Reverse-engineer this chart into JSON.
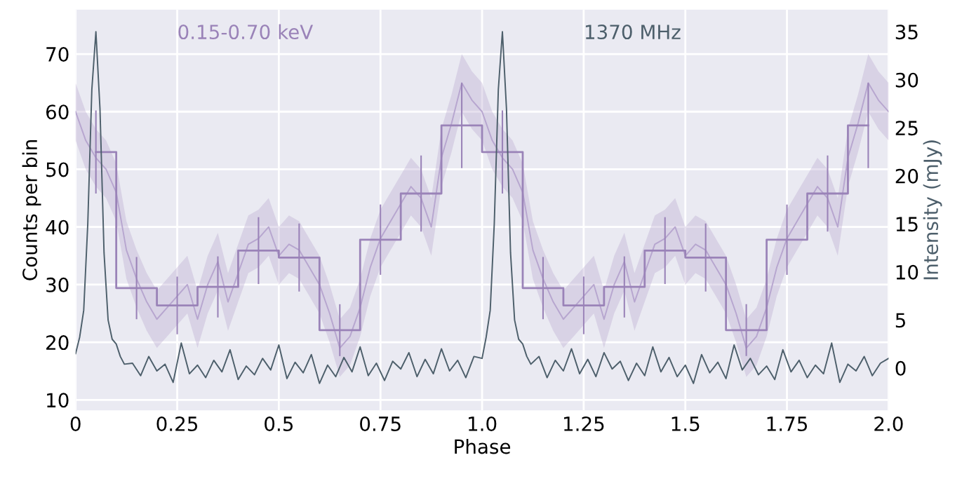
{
  "chart_data": {
    "type": "line",
    "xlabel": "Phase",
    "ylabel": "Counts per bin",
    "y2label": "Intensity (mJy)",
    "xlim": [
      0,
      2
    ],
    "xticks": [
      0,
      0.25,
      0.5,
      0.75,
      {
        "value": 1,
        "label": "1.0"
      },
      1.25,
      1.5,
      1.75,
      {
        "value": 2,
        "label": "2.0"
      }
    ],
    "ylim": [
      8.2,
      77.7
    ],
    "yticks": [
      10,
      20,
      30,
      40,
      50,
      60,
      70
    ],
    "y2lim": [
      -4.4,
      37.3
    ],
    "y2ticks": [
      0,
      5,
      10,
      15,
      20,
      25,
      30,
      35
    ],
    "grid": true,
    "series": [
      {
        "color": "#b7a6cf",
        "x": [
          0,
          0.025,
          0.05,
          0.075,
          0.1,
          0.125,
          0.15,
          0.175,
          0.2,
          0.225,
          0.25,
          0.275,
          0.3,
          0.325,
          0.35,
          0.375,
          0.4,
          0.425,
          0.45,
          0.475,
          0.5,
          0.525,
          0.55,
          0.575,
          0.6,
          0.625,
          0.65,
          0.675,
          0.7,
          0.725,
          0.75,
          0.775,
          0.8,
          0.825,
          0.85,
          0.875,
          0.9,
          0.925,
          0.95,
          0.975,
          1.0,
          1.025,
          1.05,
          1.075,
          1.1,
          1.125,
          1.15,
          1.175,
          1.2,
          1.225,
          1.25,
          1.275,
          1.3,
          1.325,
          1.35,
          1.375,
          1.4,
          1.425,
          1.45,
          1.475,
          1.5,
          1.525,
          1.55,
          1.575,
          1.6,
          1.625,
          1.65,
          1.675,
          1.7,
          1.725,
          1.75,
          1.775,
          1.8,
          1.825,
          1.85,
          1.875,
          1.9,
          1.925,
          1.95,
          1.975,
          2.0
        ],
        "values": [
          60,
          55,
          52,
          50,
          46,
          36,
          31,
          27,
          24,
          26,
          28,
          30,
          24,
          30,
          34,
          27,
          32,
          37,
          38,
          40,
          35,
          37,
          36,
          33,
          30,
          25,
          19,
          21,
          26,
          33,
          38,
          41,
          44,
          47,
          45,
          40,
          52,
          58,
          65,
          62,
          60,
          55,
          52,
          50,
          46,
          36,
          31,
          27,
          24,
          26,
          28,
          30,
          24,
          30,
          34,
          27,
          32,
          37,
          38,
          40,
          35,
          37,
          36,
          33,
          30,
          25,
          19,
          21,
          26,
          33,
          38,
          41,
          44,
          47,
          45,
          40,
          52,
          58,
          65,
          62,
          60
        ],
        "lower": [
          55,
          50,
          47,
          45,
          41,
          31,
          26,
          22,
          19,
          21,
          23,
          25,
          19,
          25,
          29,
          22,
          27,
          32,
          33,
          35,
          30,
          32,
          31,
          28,
          25,
          20,
          14,
          16,
          21,
          28,
          33,
          36,
          39,
          42,
          40,
          35,
          47,
          53,
          60,
          57,
          55,
          50,
          47,
          45,
          41,
          31,
          26,
          22,
          19,
          21,
          23,
          25,
          19,
          25,
          29,
          22,
          27,
          32,
          33,
          35,
          30,
          32,
          31,
          28,
          25,
          20,
          14,
          16,
          21,
          28,
          33,
          36,
          39,
          42,
          40,
          35,
          47,
          53,
          60,
          57,
          55
        ],
        "upper": [
          65,
          60,
          57,
          55,
          51,
          41,
          36,
          32,
          29,
          31,
          33,
          35,
          29,
          35,
          39,
          32,
          37,
          42,
          43,
          45,
          40,
          42,
          41,
          38,
          35,
          30,
          24,
          26,
          31,
          38,
          43,
          46,
          49,
          52,
          50,
          45,
          57,
          63,
          70,
          67,
          65,
          60,
          57,
          55,
          51,
          41,
          36,
          32,
          29,
          31,
          33,
          35,
          29,
          35,
          39,
          32,
          37,
          42,
          43,
          45,
          40,
          42,
          41,
          38,
          35,
          30,
          24,
          26,
          31,
          38,
          43,
          46,
          49,
          52,
          50,
          45,
          57,
          63,
          70,
          67,
          65
        ]
      },
      {
        "type": "step",
        "name": "0.15-0.70 keV",
        "color": "#9a83b8",
        "x": [
          0.05,
          0.15,
          0.25,
          0.35,
          0.45,
          0.55,
          0.65,
          0.75,
          0.85,
          0.95,
          1.05,
          1.15,
          1.25,
          1.35,
          1.45,
          1.55,
          1.65,
          1.75,
          1.85,
          1.95
        ],
        "values": [
          53,
          29.4,
          26.4,
          29.6,
          35.9,
          34.7,
          22.1,
          37.8,
          45.8,
          57.6,
          53,
          29.4,
          26.4,
          29.6,
          35.9,
          34.7,
          22.1,
          37.8,
          45.8,
          57.6
        ],
        "errors": [
          7.2,
          5.4,
          5,
          5.3,
          5.8,
          5.9,
          4.5,
          6.1,
          6.6,
          7.4,
          7.2,
          5.4,
          5,
          5.3,
          5.8,
          5.9,
          4.5,
          6.1,
          6.6,
          7.4
        ]
      },
      {
        "type": "line",
        "axis": "y2",
        "name": "1370 MHz",
        "color": "#4d5f6b",
        "x": [
          0,
          0.01,
          0.02,
          0.03,
          0.04,
          0.05,
          0.06,
          0.07,
          0.08,
          0.09,
          0.1,
          0.11,
          0.12,
          0.14,
          0.16,
          0.18,
          0.2,
          0.22,
          0.24,
          0.26,
          0.28,
          0.3,
          0.32,
          0.34,
          0.36,
          0.38,
          0.4,
          0.42,
          0.44,
          0.46,
          0.48,
          0.5,
          0.52,
          0.54,
          0.56,
          0.58,
          0.6,
          0.62,
          0.64,
          0.66,
          0.68,
          0.7,
          0.72,
          0.74,
          0.76,
          0.78,
          0.8,
          0.82,
          0.84,
          0.86,
          0.88,
          0.9,
          0.92,
          0.94,
          0.96,
          0.98,
          1.0,
          1.01,
          1.02,
          1.03,
          1.04,
          1.05,
          1.06,
          1.07,
          1.08,
          1.09,
          1.1,
          1.11,
          1.12,
          1.14,
          1.16,
          1.18,
          1.2,
          1.22,
          1.24,
          1.26,
          1.28,
          1.3,
          1.32,
          1.34,
          1.36,
          1.38,
          1.4,
          1.42,
          1.44,
          1.46,
          1.48,
          1.5,
          1.52,
          1.54,
          1.56,
          1.58,
          1.6,
          1.62,
          1.64,
          1.66,
          1.68,
          1.7,
          1.72,
          1.74,
          1.76,
          1.78,
          1.8,
          1.82,
          1.84,
          1.86,
          1.88,
          1.9,
          1.92,
          1.94,
          1.96,
          1.98,
          2.0
        ],
        "values": [
          1.5,
          3.2,
          6,
          15,
          29,
          35,
          27,
          12,
          5,
          3,
          2.5,
          1.2,
          0.4,
          0.5,
          -0.8,
          1.2,
          -0.3,
          0.4,
          -1.5,
          2.6,
          -0.6,
          0.3,
          -1.0,
          0.8,
          -0.4,
          1.9,
          -1.2,
          0.2,
          -0.7,
          1.0,
          -0.2,
          2.4,
          -1.1,
          0.6,
          -0.5,
          1.4,
          -1.6,
          0.3,
          -0.9,
          1.1,
          -0.4,
          2.2,
          -0.8,
          0.5,
          -1.3,
          0.7,
          -0.1,
          1.6,
          -0.9,
          0.9,
          -0.6,
          2.0,
          -0.3,
          0.8,
          -1.0,
          1.2,
          1.0,
          3.2,
          6,
          15,
          29,
          35,
          27,
          12,
          5,
          3,
          2.5,
          1.2,
          0.4,
          1.2,
          -1.0,
          0.8,
          -0.3,
          2.0,
          -0.6,
          0.9,
          -0.9,
          1.6,
          -0.1,
          0.7,
          -1.3,
          0.5,
          -0.8,
          2.2,
          -0.4,
          1.1,
          -0.9,
          0.3,
          -1.6,
          1.4,
          -0.5,
          0.6,
          -1.1,
          2.4,
          -0.2,
          1.0,
          -0.7,
          0.2,
          -1.2,
          1.9,
          -0.4,
          0.8,
          -1.0,
          0.3,
          -0.6,
          2.6,
          -1.5,
          0.4,
          -0.3,
          1.2,
          -0.8,
          0.5,
          1.0
        ]
      }
    ]
  }
}
